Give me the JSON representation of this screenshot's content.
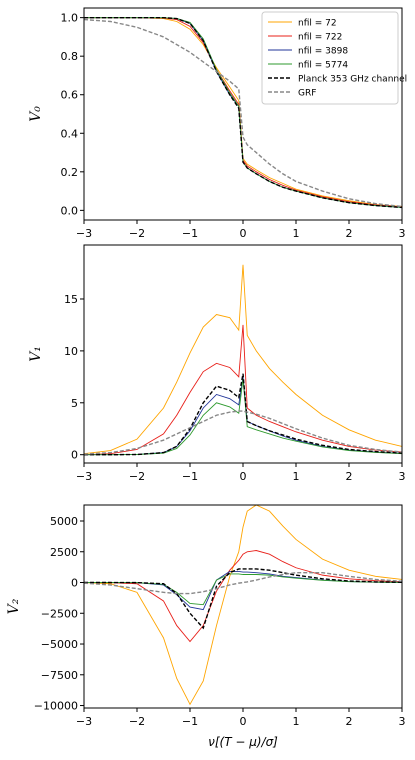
{
  "chart_data": [
    {
      "type": "line",
      "y_label": "V₀",
      "legend": "upper right",
      "x": [
        -3,
        -2.5,
        -2,
        -1.5,
        -1.25,
        -1,
        -0.75,
        -0.5,
        -0.25,
        -0.08,
        0,
        0.08,
        0.25,
        0.5,
        0.75,
        1,
        1.5,
        2,
        2.5,
        3
      ],
      "xlim": [
        -3,
        3
      ],
      "ylim": [
        -0.05,
        1.05
      ],
      "xticks": [
        {
          "value": -3,
          "label": "−3"
        },
        {
          "value": -2,
          "label": "−2"
        },
        {
          "value": -1,
          "label": "−1"
        },
        0,
        1,
        2,
        3
      ],
      "yticks": [
        {
          "value": 0,
          "label": "0.0"
        },
        0.2,
        0.4,
        0.6,
        0.8,
        {
          "value": 1,
          "label": "1.0"
        }
      ],
      "series": [
        {
          "name": "nfil = 72",
          "color": "#ffa500",
          "style": "solid",
          "values": [
            1,
            1,
            1,
            0.995,
            0.98,
            0.94,
            0.86,
            0.74,
            0.64,
            0.57,
            0.27,
            0.24,
            0.21,
            0.17,
            0.14,
            0.11,
            0.075,
            0.05,
            0.03,
            0.02
          ]
        },
        {
          "name": "nfil = 722",
          "color": "#e8201a",
          "style": "solid",
          "values": [
            1,
            1,
            1,
            0.998,
            0.99,
            0.955,
            0.87,
            0.73,
            0.62,
            0.55,
            0.26,
            0.23,
            0.2,
            0.16,
            0.13,
            0.105,
            0.07,
            0.045,
            0.028,
            0.018
          ]
        },
        {
          "name": "nfil = 3898",
          "color": "#22359a",
          "style": "solid",
          "values": [
            1,
            1,
            1,
            1,
            0.995,
            0.97,
            0.88,
            0.72,
            0.6,
            0.54,
            0.25,
            0.22,
            0.19,
            0.15,
            0.12,
            0.1,
            0.065,
            0.04,
            0.025,
            0.015
          ]
        },
        {
          "name": "nfil = 5774",
          "color": "#2e9a2e",
          "style": "solid",
          "values": [
            1,
            1,
            1,
            1,
            0.996,
            0.975,
            0.89,
            0.73,
            0.61,
            0.54,
            0.25,
            0.22,
            0.19,
            0.15,
            0.12,
            0.1,
            0.065,
            0.04,
            0.025,
            0.015
          ]
        },
        {
          "name": "Planck 353 GHz channel",
          "color": "#000000",
          "style": "dashed",
          "values": [
            1,
            1,
            1,
            1,
            0.995,
            0.97,
            0.88,
            0.72,
            0.6,
            0.53,
            0.25,
            0.22,
            0.19,
            0.15,
            0.12,
            0.1,
            0.065,
            0.04,
            0.025,
            0.015
          ]
        },
        {
          "name": "GRF",
          "color": "#888888",
          "style": "dashed",
          "values": [
            0.99,
            0.98,
            0.95,
            0.9,
            0.86,
            0.82,
            0.77,
            0.72,
            0.67,
            0.63,
            0.38,
            0.34,
            0.3,
            0.24,
            0.19,
            0.15,
            0.1,
            0.06,
            0.035,
            0.02
          ]
        }
      ]
    },
    {
      "type": "line",
      "y_label": "V₁",
      "x": [
        -3,
        -2.5,
        -2,
        -1.5,
        -1.25,
        -1,
        -0.75,
        -0.5,
        -0.25,
        -0.08,
        0,
        0.08,
        0.25,
        0.5,
        0.75,
        1,
        1.5,
        2,
        2.5,
        3
      ],
      "xlim": [
        -3,
        3
      ],
      "ylim": [
        -0.8,
        20.2
      ],
      "xticks": [
        {
          "value": -3,
          "label": "−3"
        },
        {
          "value": -2,
          "label": "−2"
        },
        {
          "value": -1,
          "label": "−1"
        },
        0,
        1,
        2,
        3
      ],
      "yticks": [
        0,
        5,
        10,
        15
      ],
      "series": [
        {
          "color": "#ffa500",
          "style": "solid",
          "values": [
            0.1,
            0.4,
            1.5,
            4.5,
            7,
            9.8,
            12.3,
            13.5,
            13.2,
            12,
            18.3,
            11.5,
            10,
            8.3,
            7,
            5.8,
            3.8,
            2.4,
            1.4,
            0.8
          ]
        },
        {
          "color": "#e8201a",
          "style": "solid",
          "values": [
            0,
            0.1,
            0.5,
            2,
            3.8,
            6,
            8,
            8.8,
            8.4,
            7.5,
            12.5,
            4.5,
            3.8,
            3.2,
            2.7,
            2.2,
            1.4,
            0.8,
            0.45,
            0.25
          ]
        },
        {
          "color": "#22359a",
          "style": "solid",
          "values": [
            0,
            0,
            0.02,
            0.2,
            0.8,
            2.3,
            4.5,
            5.8,
            5.4,
            4.8,
            7.5,
            3.2,
            2.8,
            2.3,
            1.8,
            1.4,
            0.8,
            0.45,
            0.25,
            0.12
          ]
        },
        {
          "color": "#2e9a2e",
          "style": "solid",
          "values": [
            0,
            0,
            0.02,
            0.15,
            0.6,
            1.9,
            3.8,
            5,
            4.6,
            4,
            7.3,
            2.7,
            2.4,
            2,
            1.6,
            1.3,
            0.75,
            0.4,
            0.22,
            0.1
          ]
        },
        {
          "color": "#000000",
          "style": "dashed",
          "values": [
            0,
            0,
            0.02,
            0.2,
            0.8,
            2.5,
            5,
            6.6,
            6.2,
            5.5,
            7.8,
            3.2,
            2.8,
            2.3,
            1.9,
            1.5,
            0.9,
            0.5,
            0.3,
            0.15
          ]
        },
        {
          "color": "#888888",
          "style": "dashed",
          "values": [
            0.05,
            0.2,
            0.6,
            1.4,
            2,
            2.6,
            3.2,
            3.8,
            4.1,
            4.2,
            4.2,
            4.1,
            3.9,
            3.5,
            3,
            2.5,
            1.6,
            0.9,
            0.5,
            0.25
          ]
        }
      ]
    },
    {
      "type": "line",
      "y_label": "V₂",
      "x_label": "ν[(T − μ)/σ]",
      "x": [
        -3,
        -2.5,
        -2,
        -1.5,
        -1.25,
        -1,
        -0.75,
        -0.5,
        -0.25,
        -0.08,
        0,
        0.08,
        0.25,
        0.5,
        0.75,
        1,
        1.5,
        2,
        2.5,
        3
      ],
      "xlim": [
        -3,
        3
      ],
      "ylim": [
        -10200,
        6300
      ],
      "xticks": [
        {
          "value": -3,
          "label": "−3"
        },
        {
          "value": -2,
          "label": "−2"
        },
        {
          "value": -1,
          "label": "−1"
        },
        0,
        1,
        2,
        3
      ],
      "yticks": [
        {
          "value": -10000,
          "label": "−10000"
        },
        {
          "value": -7500,
          "label": "−7500"
        },
        {
          "value": -5000,
          "label": "−5000"
        },
        {
          "value": -2500,
          "label": "−2500"
        },
        0,
        2500,
        5000
      ],
      "series": [
        {
          "color": "#ffa500",
          "style": "solid",
          "values": [
            0,
            -100,
            -800,
            -4500,
            -7800,
            -9900,
            -8000,
            -3500,
            500,
            2500,
            4500,
            5800,
            6300,
            5800,
            4600,
            3500,
            1900,
            1000,
            500,
            250
          ]
        },
        {
          "color": "#e8201a",
          "style": "solid",
          "values": [
            0,
            -10,
            -100,
            -1500,
            -3500,
            -4800,
            -3500,
            -700,
            1000,
            1800,
            2300,
            2500,
            2600,
            2300,
            1700,
            1200,
            600,
            300,
            150,
            60
          ]
        },
        {
          "color": "#22359a",
          "style": "solid",
          "values": [
            0,
            0,
            -10,
            -200,
            -1000,
            -2000,
            -2200,
            200,
            900,
            900,
            850,
            850,
            800,
            700,
            500,
            400,
            200,
            80,
            30,
            10
          ]
        },
        {
          "color": "#2e9a2e",
          "style": "solid",
          "values": [
            0,
            0,
            -10,
            -150,
            -800,
            -1700,
            -1800,
            200,
            700,
            700,
            650,
            650,
            650,
            600,
            450,
            350,
            180,
            70,
            25,
            10
          ]
        },
        {
          "color": "#000000",
          "style": "dashed",
          "values": [
            0,
            0,
            -10,
            -100,
            -900,
            -2500,
            -3700,
            -300,
            800,
            1100,
            1100,
            1100,
            1100,
            1000,
            800,
            600,
            300,
            120,
            50,
            20
          ]
        },
        {
          "color": "#888888",
          "style": "dashed",
          "values": [
            -50,
            -200,
            -500,
            -800,
            -900,
            -900,
            -750,
            -500,
            -200,
            -50,
            0,
            50,
            200,
            450,
            650,
            800,
            800,
            500,
            250,
            100
          ]
        }
      ]
    }
  ]
}
